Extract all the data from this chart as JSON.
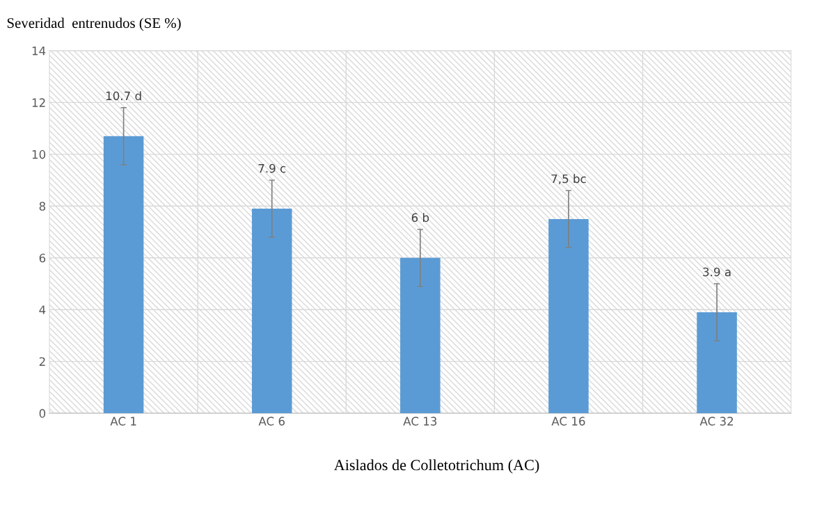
{
  "chart_data": {
    "type": "bar",
    "ylabel": "Severidad  entrenudos (SE %)",
    "xlabel": "Aislados de Colletotrichum (AC)",
    "categories": [
      "AC 1",
      "AC 6",
      "AC 13",
      "AC 16",
      "AC 32"
    ],
    "values": [
      10.7,
      7.9,
      6,
      7.5,
      3.9
    ],
    "errors": [
      1.1,
      1.1,
      1.1,
      1.1,
      1.1
    ],
    "value_labels": [
      "10.7 d",
      "7.9 c",
      "6 b",
      "7,5 bc",
      "3.9 a"
    ],
    "color": "#5b9bd5",
    "ylim": [
      0,
      14
    ],
    "yticks": [
      0,
      2,
      4,
      6,
      8,
      10,
      12,
      14
    ],
    "grid": true
  }
}
